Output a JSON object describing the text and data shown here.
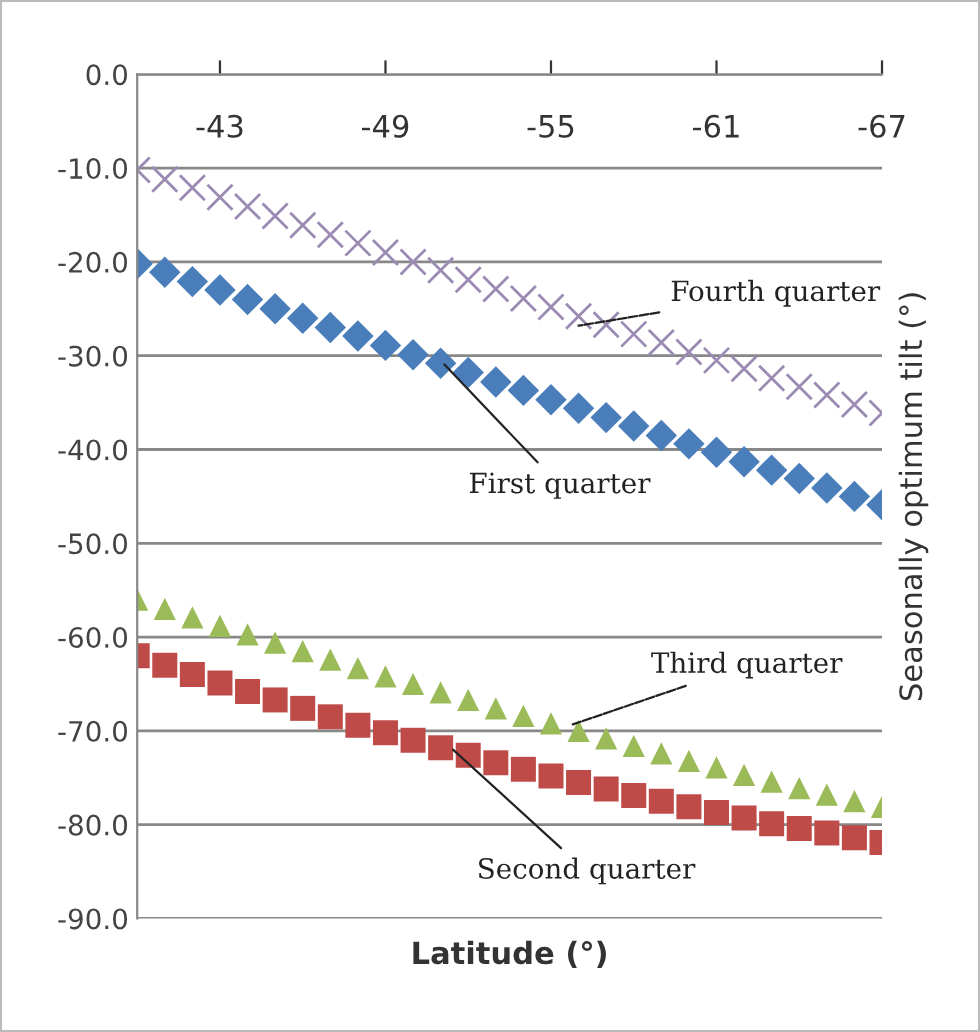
{
  "chart_data": {
    "type": "scatter",
    "xlabel": "Latitude (°)",
    "ylabel": "Seasonally optimum tilt (°)",
    "x": [
      -40,
      -41,
      -42,
      -43,
      -44,
      -45,
      -46,
      -47,
      -48,
      -49,
      -50,
      -51,
      -52,
      -53,
      -54,
      -55,
      -56,
      -57,
      -58,
      -59,
      -60,
      -61,
      -62,
      -63,
      -64,
      -65,
      -66,
      -67
    ],
    "xlim": [
      -40,
      -67
    ],
    "xticks": [
      -43,
      -49,
      -55,
      -61,
      -67
    ],
    "ylim": [
      -90,
      0
    ],
    "yticks": [
      {
        "value": 0,
        "label": "0.0"
      },
      {
        "value": -10,
        "label": "-10.0"
      },
      {
        "value": -20,
        "label": "-20.0"
      },
      {
        "value": -30,
        "label": "-30.0"
      },
      {
        "value": -40,
        "label": "-40.0"
      },
      {
        "value": -50,
        "label": "-50.0"
      },
      {
        "value": -60,
        "label": "-60.0"
      },
      {
        "value": -70,
        "label": "-70.0"
      },
      {
        "value": -80,
        "label": "-80.0"
      },
      {
        "value": -90,
        "label": "-90.0"
      }
    ],
    "grid": "y",
    "series": [
      {
        "color": "#9b8bb3",
        "marker": "cross",
        "values": [
          -10.2,
          -11.2,
          -12.1,
          -13.1,
          -14.1,
          -15.1,
          -16.1,
          -17.1,
          -18.0,
          -19.0,
          -20.0,
          -20.9,
          -21.9,
          -22.9,
          -23.9,
          -24.8,
          -25.8,
          -26.7,
          -27.7,
          -28.6,
          -29.6,
          -30.5,
          -31.4,
          -32.4,
          -33.3,
          -34.2,
          -35.2,
          -36.1
        ]
      },
      {
        "color": "#4a7ebb",
        "marker": "diamond",
        "values": [
          -20.2,
          -21.1,
          -22.1,
          -23.0,
          -24.0,
          -25.0,
          -26.0,
          -27.0,
          -27.9,
          -28.9,
          -29.9,
          -30.8,
          -31.8,
          -32.8,
          -33.7,
          -34.7,
          -35.6,
          -36.6,
          -37.5,
          -38.5,
          -39.4,
          -40.3,
          -41.3,
          -42.2,
          -43.1,
          -44.1,
          -45.0,
          -45.9
        ]
      },
      {
        "color": "#9bbb59",
        "marker": "triangle",
        "values": [
          -56.0,
          -57.0,
          -57.9,
          -58.8,
          -59.7,
          -60.6,
          -61.5,
          -62.4,
          -63.3,
          -64.2,
          -65.0,
          -65.9,
          -66.7,
          -67.6,
          -68.4,
          -69.2,
          -70.0,
          -70.8,
          -71.6,
          -72.4,
          -73.2,
          -73.9,
          -74.7,
          -75.4,
          -76.1,
          -76.8,
          -77.5,
          -78.1
        ]
      },
      {
        "color": "#be4b48",
        "marker": "square",
        "values": [
          -62.0,
          -63.0,
          -64.0,
          -64.9,
          -65.8,
          -66.7,
          -67.6,
          -68.5,
          -69.4,
          -70.2,
          -71.0,
          -71.8,
          -72.6,
          -73.4,
          -74.1,
          -74.8,
          -75.5,
          -76.2,
          -76.9,
          -77.5,
          -78.1,
          -78.7,
          -79.3,
          -79.9,
          -80.4,
          -80.9,
          -81.4,
          -81.9
        ]
      }
    ],
    "annotations": [
      {
        "text": "Fourth quarter",
        "x": -55.8,
        "y": -26.9
      },
      {
        "text": "First quarter",
        "x": -51,
        "y": -30.5
      },
      {
        "text": "Third quarter",
        "x": -55.6,
        "y": -69.5
      },
      {
        "text": "Second quarter",
        "x": -51.3,
        "y": -71.6
      }
    ]
  }
}
